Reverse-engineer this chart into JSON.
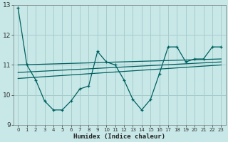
{
  "background_color": "#c8e8e8",
  "grid_color": "#a8cccc",
  "line_color": "#006060",
  "xlabel": "Humidex (Indice chaleur)",
  "xlim": [
    -0.5,
    23.5
  ],
  "ylim": [
    9,
    13
  ],
  "xticks": [
    0,
    1,
    2,
    3,
    4,
    5,
    6,
    7,
    8,
    9,
    10,
    11,
    12,
    13,
    14,
    15,
    16,
    17,
    18,
    19,
    20,
    21,
    22,
    23
  ],
  "yticks": [
    9,
    10,
    11,
    12,
    13
  ],
  "line1_x": [
    0,
    1,
    2,
    3,
    4,
    5,
    6,
    7,
    8,
    9,
    10,
    11,
    12,
    13,
    14,
    15,
    16,
    17,
    18,
    19,
    20,
    21,
    22,
    23
  ],
  "line1_y": [
    12.9,
    11.0,
    10.5,
    9.8,
    9.5,
    9.5,
    9.8,
    10.2,
    10.3,
    11.45,
    11.1,
    11.0,
    10.5,
    9.85,
    9.5,
    9.85,
    10.7,
    11.6,
    11.6,
    11.1,
    11.2,
    11.2,
    11.6,
    11.6
  ],
  "trend1_x": [
    0,
    23
  ],
  "trend1_y": [
    11.0,
    11.2
  ],
  "trend2_x": [
    0,
    23
  ],
  "trend2_y": [
    10.75,
    11.1
  ],
  "trend3_x": [
    0,
    23
  ],
  "trend3_y": [
    10.55,
    11.0
  ]
}
